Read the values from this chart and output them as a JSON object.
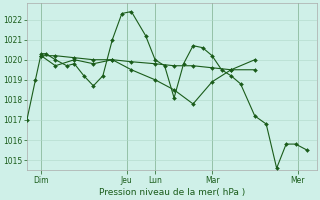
{
  "background_color": "#cff0e8",
  "grid_color": "#b0d8c8",
  "line_color": "#1a5c1a",
  "marker_color": "#1a5c1a",
  "xlabel_text": "Pression niveau de la mer( hPa )",
  "ylim": [
    1014.5,
    1022.8
  ],
  "yticks": [
    1015,
    1016,
    1017,
    1018,
    1019,
    1020,
    1021,
    1022
  ],
  "day_positions": [
    15,
    105,
    135,
    195,
    285
  ],
  "day_labels": [
    "Dim",
    "Jeu",
    "Lun",
    "Mar",
    "Mer"
  ],
  "vline_positions": [
    15,
    105,
    135,
    195,
    285
  ],
  "series1": [
    [
      0,
      1017.0
    ],
    [
      9,
      1019.0
    ],
    [
      15,
      1020.3
    ],
    [
      20,
      1020.3
    ],
    [
      30,
      1020.0
    ],
    [
      42,
      1019.7
    ],
    [
      50,
      1019.8
    ],
    [
      60,
      1019.2
    ],
    [
      70,
      1018.7
    ],
    [
      80,
      1019.2
    ],
    [
      90,
      1021.0
    ],
    [
      100,
      1022.3
    ],
    [
      110,
      1022.4
    ],
    [
      125,
      1021.2
    ],
    [
      135,
      1020.0
    ],
    [
      145,
      1019.7
    ],
    [
      155,
      1018.1
    ],
    [
      165,
      1019.8
    ],
    [
      175,
      1020.7
    ],
    [
      185,
      1020.6
    ],
    [
      195,
      1020.2
    ],
    [
      205,
      1019.5
    ],
    [
      215,
      1019.2
    ],
    [
      225,
      1018.8
    ],
    [
      240,
      1017.2
    ],
    [
      252,
      1016.8
    ],
    [
      263,
      1014.6
    ],
    [
      273,
      1015.8
    ],
    [
      283,
      1015.8
    ],
    [
      295,
      1015.5
    ]
  ],
  "series2": [
    [
      15,
      1020.2
    ],
    [
      30,
      1020.2
    ],
    [
      50,
      1020.1
    ],
    [
      70,
      1020.0
    ],
    [
      90,
      1020.0
    ],
    [
      110,
      1019.9
    ],
    [
      135,
      1019.8
    ],
    [
      155,
      1019.7
    ],
    [
      175,
      1019.7
    ],
    [
      195,
      1019.6
    ],
    [
      215,
      1019.5
    ],
    [
      240,
      1019.5
    ]
  ],
  "series3": [
    [
      15,
      1020.2
    ],
    [
      30,
      1019.7
    ],
    [
      50,
      1020.0
    ],
    [
      70,
      1019.8
    ],
    [
      90,
      1020.0
    ],
    [
      110,
      1019.5
    ],
    [
      135,
      1019.0
    ],
    [
      155,
      1018.5
    ],
    [
      175,
      1017.8
    ],
    [
      195,
      1018.9
    ],
    [
      215,
      1019.5
    ],
    [
      240,
      1020.0
    ]
  ]
}
